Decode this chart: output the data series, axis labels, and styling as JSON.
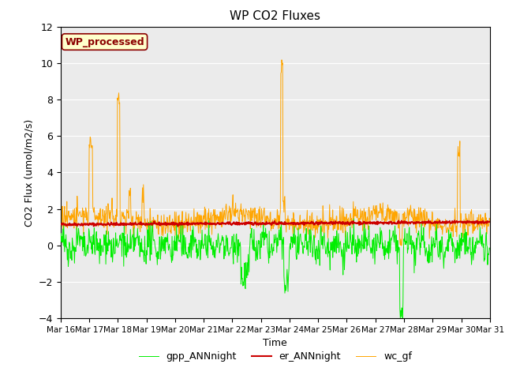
{
  "title": "WP CO2 Fluxes",
  "ylabel": "CO2 Flux (umol/m2/s)",
  "xlabel": "Time",
  "ylim": [
    -4,
    12
  ],
  "yticks": [
    -4,
    -2,
    0,
    2,
    4,
    6,
    8,
    10,
    12
  ],
  "annotation_text": "WP_processed",
  "annotation_color": "#8B0000",
  "annotation_bg": "#FFFFCC",
  "annotation_border": "#8B0000",
  "line_colors": {
    "gpp": "#00EE00",
    "er": "#CC0000",
    "wc": "#FFA500"
  },
  "legend_labels": [
    "gpp_ANNnight",
    "er_ANNnight",
    "wc_gf"
  ],
  "x_tick_labels": [
    "Mar 16",
    "Mar 17",
    "Mar 18",
    "Mar 19",
    "Mar 20",
    "Mar 21",
    "Mar 22",
    "Mar 23",
    "Mar 24",
    "Mar 25",
    "Mar 26",
    "Mar 27",
    "Mar 28",
    "Mar 29",
    "Mar 30",
    "Mar 31"
  ],
  "bg_color": "#EBEBEB",
  "fig_bg": "#FFFFFF",
  "n_points": 960,
  "days": 15,
  "seed": 42
}
